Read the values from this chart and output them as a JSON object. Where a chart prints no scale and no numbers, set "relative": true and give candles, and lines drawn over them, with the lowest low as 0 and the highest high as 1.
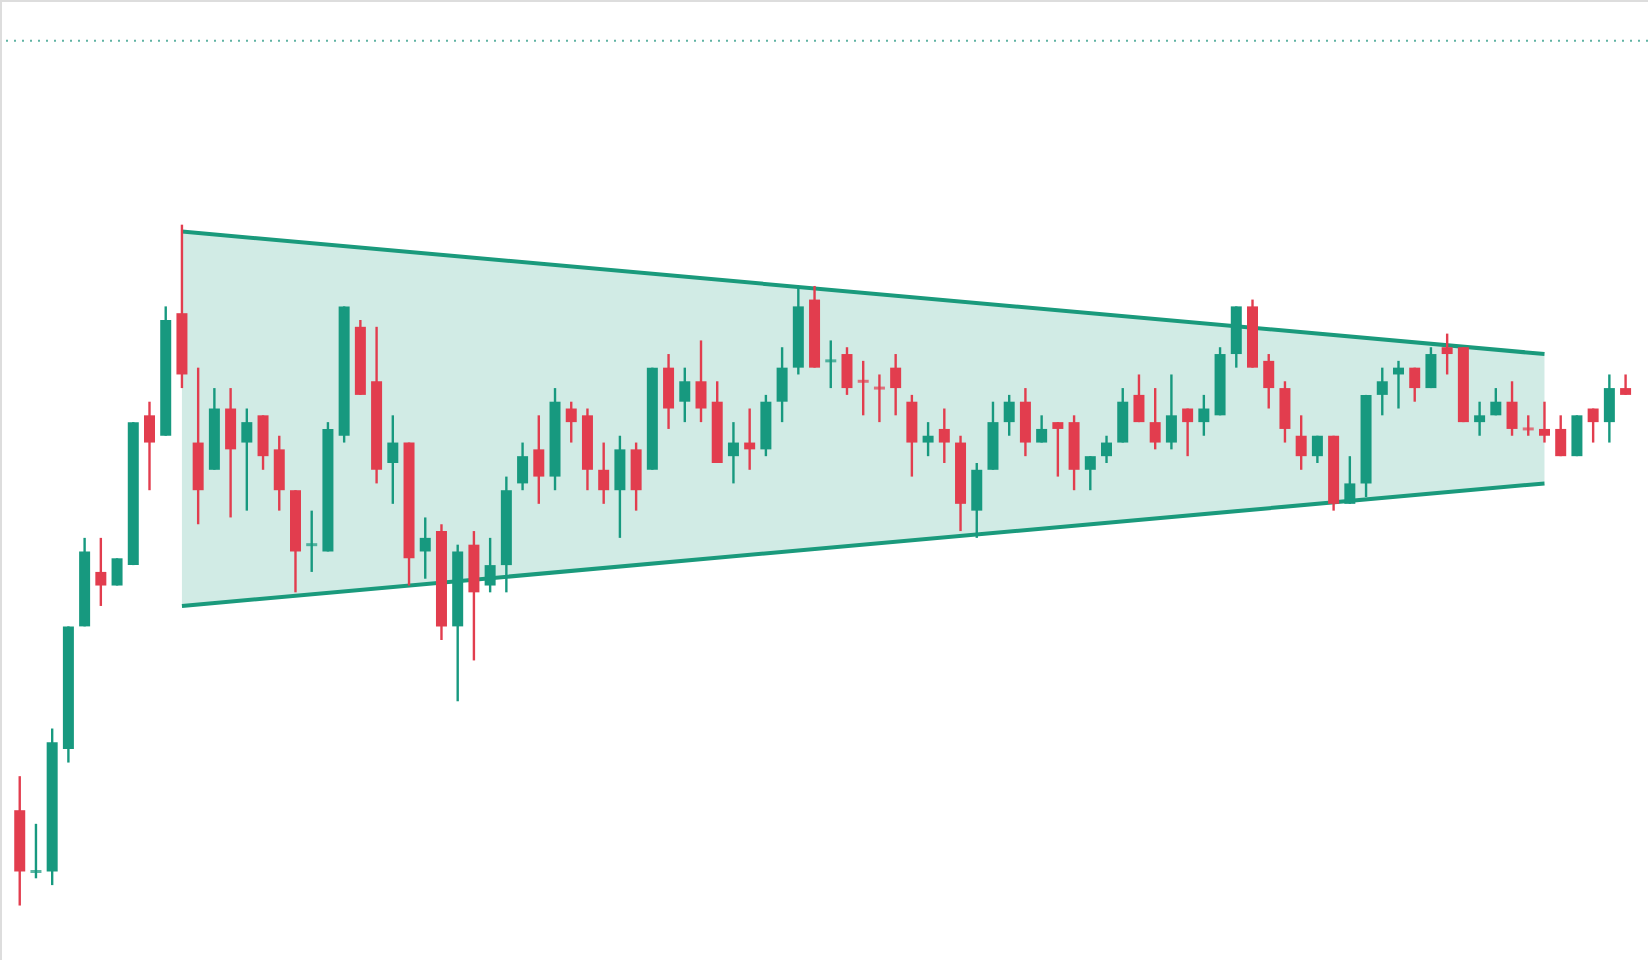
{
  "chart_data": {
    "type": "candlestick",
    "relative": true,
    "categories": [
      null,
      null,
      null,
      null,
      null,
      null,
      null,
      null,
      null,
      null,
      null,
      null,
      null,
      null,
      null,
      null,
      null,
      null,
      null,
      null,
      null,
      null,
      null,
      null,
      null,
      null,
      null,
      null,
      null,
      null,
      null,
      null,
      null,
      null,
      null,
      null,
      null,
      null,
      null,
      null,
      null,
      null,
      null,
      null,
      null,
      null,
      null,
      null,
      null,
      null,
      null,
      null,
      null,
      null,
      null,
      null,
      null,
      null,
      null,
      null,
      null,
      null,
      null,
      null,
      null,
      null,
      null,
      null,
      null,
      null,
      null,
      null,
      null,
      null,
      null,
      null,
      null,
      null,
      null,
      null,
      null,
      null,
      null,
      null,
      null,
      null,
      null,
      null,
      null,
      null,
      null,
      null,
      null,
      null,
      null,
      null,
      null,
      null,
      null,
      null
    ],
    "ohlc": [
      [
        0.14,
        0.19,
        0.0,
        0.05
      ],
      [
        0.05,
        0.12,
        0.04,
        0.05
      ],
      [
        0.05,
        0.26,
        0.03,
        0.24
      ],
      [
        0.23,
        0.41,
        0.21,
        0.41
      ],
      [
        0.41,
        0.54,
        0.41,
        0.52
      ],
      [
        0.49,
        0.54,
        0.44,
        0.47
      ],
      [
        0.47,
        0.51,
        0.47,
        0.51
      ],
      [
        0.5,
        0.71,
        0.5,
        0.71
      ],
      [
        0.72,
        0.74,
        0.61,
        0.68
      ],
      [
        0.69,
        0.88,
        0.69,
        0.86
      ],
      [
        0.87,
        1.0,
        0.76,
        0.78
      ],
      [
        0.68,
        0.79,
        0.56,
        0.61
      ],
      [
        0.64,
        0.76,
        0.64,
        0.73
      ],
      [
        0.73,
        0.76,
        0.57,
        0.67
      ],
      [
        0.68,
        0.73,
        0.58,
        0.71
      ],
      [
        0.72,
        0.72,
        0.64,
        0.66
      ],
      [
        0.67,
        0.69,
        0.58,
        0.61
      ],
      [
        0.61,
        0.61,
        0.46,
        0.52
      ],
      [
        0.53,
        0.58,
        0.49,
        0.53
      ],
      [
        0.52,
        0.71,
        0.52,
        0.7
      ],
      [
        0.69,
        0.88,
        0.68,
        0.88
      ],
      [
        0.85,
        0.86,
        0.75,
        0.75
      ],
      [
        0.77,
        0.85,
        0.62,
        0.64
      ],
      [
        0.65,
        0.72,
        0.59,
        0.68
      ],
      [
        0.68,
        0.68,
        0.47,
        0.51
      ],
      [
        0.52,
        0.57,
        0.48,
        0.54
      ],
      [
        0.55,
        0.56,
        0.39,
        0.41
      ],
      [
        0.41,
        0.53,
        0.3,
        0.52
      ],
      [
        0.53,
        0.55,
        0.36,
        0.46
      ],
      [
        0.47,
        0.54,
        0.46,
        0.5
      ],
      [
        0.5,
        0.63,
        0.46,
        0.61
      ],
      [
        0.62,
        0.68,
        0.61,
        0.66
      ],
      [
        0.67,
        0.72,
        0.59,
        0.63
      ],
      [
        0.63,
        0.76,
        0.61,
        0.74
      ],
      [
        0.73,
        0.74,
        0.68,
        0.71
      ],
      [
        0.72,
        0.73,
        0.61,
        0.64
      ],
      [
        0.64,
        0.68,
        0.59,
        0.61
      ],
      [
        0.61,
        0.69,
        0.54,
        0.67
      ],
      [
        0.67,
        0.68,
        0.58,
        0.61
      ],
      [
        0.64,
        0.79,
        0.64,
        0.79
      ],
      [
        0.79,
        0.81,
        0.7,
        0.73
      ],
      [
        0.74,
        0.79,
        0.71,
        0.77
      ],
      [
        0.77,
        0.83,
        0.71,
        0.73
      ],
      [
        0.74,
        0.77,
        0.65,
        0.65
      ],
      [
        0.66,
        0.71,
        0.62,
        0.68
      ],
      [
        0.68,
        0.73,
        0.64,
        0.67
      ],
      [
        0.67,
        0.75,
        0.66,
        0.74
      ],
      [
        0.74,
        0.82,
        0.71,
        0.79
      ],
      [
        0.79,
        0.91,
        0.78,
        0.88
      ],
      [
        0.89,
        0.91,
        0.79,
        0.79
      ],
      [
        0.8,
        0.83,
        0.76,
        0.8
      ],
      [
        0.81,
        0.82,
        0.75,
        0.76
      ],
      [
        0.77,
        0.8,
        0.72,
        0.77
      ],
      [
        0.76,
        0.78,
        0.71,
        0.76
      ],
      [
        0.79,
        0.81,
        0.72,
        0.76
      ],
      [
        0.74,
        0.75,
        0.63,
        0.68
      ],
      [
        0.68,
        0.71,
        0.66,
        0.69
      ],
      [
        0.7,
        0.73,
        0.65,
        0.68
      ],
      [
        0.68,
        0.69,
        0.55,
        0.59
      ],
      [
        0.58,
        0.65,
        0.54,
        0.64
      ],
      [
        0.64,
        0.74,
        0.64,
        0.71
      ],
      [
        0.71,
        0.75,
        0.69,
        0.74
      ],
      [
        0.74,
        0.76,
        0.66,
        0.68
      ],
      [
        0.68,
        0.72,
        0.68,
        0.7
      ],
      [
        0.71,
        0.71,
        0.63,
        0.7
      ],
      [
        0.71,
        0.72,
        0.61,
        0.64
      ],
      [
        0.64,
        0.66,
        0.61,
        0.66
      ],
      [
        0.66,
        0.69,
        0.65,
        0.68
      ],
      [
        0.68,
        0.76,
        0.68,
        0.74
      ],
      [
        0.75,
        0.78,
        0.71,
        0.71
      ],
      [
        0.71,
        0.76,
        0.67,
        0.68
      ],
      [
        0.68,
        0.78,
        0.67,
        0.72
      ],
      [
        0.73,
        0.73,
        0.66,
        0.71
      ],
      [
        0.71,
        0.75,
        0.69,
        0.73
      ],
      [
        0.72,
        0.82,
        0.72,
        0.81
      ],
      [
        0.81,
        0.88,
        0.79,
        0.88
      ],
      [
        0.88,
        0.89,
        0.79,
        0.79
      ],
      [
        0.8,
        0.81,
        0.73,
        0.76
      ],
      [
        0.76,
        0.77,
        0.68,
        0.7
      ],
      [
        0.69,
        0.72,
        0.64,
        0.66
      ],
      [
        0.66,
        0.69,
        0.65,
        0.69
      ],
      [
        0.69,
        0.69,
        0.58,
        0.59
      ],
      [
        0.59,
        0.66,
        0.59,
        0.62
      ],
      [
        0.62,
        0.75,
        0.6,
        0.75
      ],
      [
        0.75,
        0.79,
        0.72,
        0.77
      ],
      [
        0.78,
        0.8,
        0.73,
        0.79
      ],
      [
        0.79,
        0.79,
        0.74,
        0.76
      ],
      [
        0.76,
        0.82,
        0.76,
        0.81
      ],
      [
        0.82,
        0.84,
        0.78,
        0.81
      ],
      [
        0.82,
        0.82,
        0.71,
        0.71
      ],
      [
        0.71,
        0.74,
        0.69,
        0.72
      ],
      [
        0.72,
        0.76,
        0.72,
        0.74
      ],
      [
        0.74,
        0.77,
        0.69,
        0.7
      ],
      [
        0.7,
        0.72,
        0.69,
        0.7
      ],
      [
        0.7,
        0.74,
        0.68,
        0.69
      ],
      [
        0.7,
        0.72,
        0.66,
        0.66
      ],
      [
        0.66,
        0.72,
        0.66,
        0.72
      ],
      [
        0.73,
        0.73,
        0.68,
        0.71
      ],
      [
        0.71,
        0.78,
        0.68,
        0.76
      ],
      [
        0.76,
        0.78,
        0.75,
        0.75
      ]
    ],
    "colors": [
      "#e23d4e",
      "#17997f",
      "#17997f",
      "#17997f",
      "#17997f",
      "#e23d4e",
      "#17997f",
      "#17997f",
      "#e23d4e",
      "#17997f",
      "#e23d4e",
      "#e23d4e",
      "#17997f",
      "#e23d4e",
      "#17997f",
      "#e23d4e",
      "#e23d4e",
      "#e23d4e",
      "#17997f",
      "#17997f",
      "#17997f",
      "#e23d4e",
      "#e23d4e",
      "#17997f",
      "#e23d4e",
      "#17997f",
      "#e23d4e",
      "#17997f",
      "#e23d4e",
      "#17997f",
      "#17997f",
      "#17997f",
      "#e23d4e",
      "#17997f",
      "#e23d4e",
      "#e23d4e",
      "#e23d4e",
      "#17997f",
      "#e23d4e",
      "#17997f",
      "#e23d4e",
      "#17997f",
      "#e23d4e",
      "#e23d4e",
      "#17997f",
      "#e23d4e",
      "#17997f",
      "#17997f",
      "#17997f",
      "#e23d4e",
      "#17997f",
      "#e23d4e",
      "#e23d4e",
      "#e23d4e",
      "#e23d4e",
      "#e23d4e",
      "#17997f",
      "#e23d4e",
      "#e23d4e",
      "#17997f",
      "#17997f",
      "#17997f",
      "#e23d4e",
      "#17997f",
      "#e23d4e",
      "#e23d4e",
      "#17997f",
      "#17997f",
      "#17997f",
      "#e23d4e",
      "#e23d4e",
      "#17997f",
      "#e23d4e",
      "#17997f",
      "#17997f",
      "#17997f",
      "#e23d4e",
      "#e23d4e",
      "#e23d4e",
      "#e23d4e",
      "#17997f",
      "#e23d4e",
      "#17997f",
      "#17997f",
      "#17997f",
      "#17997f",
      "#e23d4e",
      "#17997f",
      "#e23d4e",
      "#e23d4e",
      "#17997f",
      "#17997f",
      "#e23d4e",
      "#e23d4e",
      "#e23d4e",
      "#e23d4e",
      "#17997f",
      "#e23d4e",
      "#17997f",
      "#e23d4e"
    ],
    "series": [
      {
        "type": "line",
        "color": "#1a9a7c",
        "values": [
          null,
          null,
          null,
          null,
          null,
          null,
          null,
          null,
          null,
          null,
          0.99,
          null,
          null,
          null,
          null,
          null,
          null,
          null,
          null,
          null,
          null,
          null,
          null,
          null,
          null,
          null,
          null,
          null,
          null,
          null,
          null,
          null,
          null,
          null,
          null,
          null,
          null,
          null,
          null,
          null,
          null,
          null,
          null,
          null,
          null,
          null,
          null,
          null,
          null,
          null,
          null,
          null,
          null,
          null,
          null,
          null,
          null,
          null,
          null,
          null,
          null,
          null,
          null,
          null,
          null,
          null,
          null,
          null,
          null,
          null,
          null,
          null,
          null,
          null,
          null,
          null,
          null,
          null,
          null,
          null,
          null,
          null,
          null,
          null,
          null,
          null,
          null,
          null,
          null,
          null,
          null,
          null,
          null,
          null,
          0.81,
          null,
          null,
          null,
          null,
          null
        ],
        "lower": [
          null,
          null,
          null,
          null,
          null,
          null,
          null,
          null,
          null,
          null,
          0.44,
          null,
          null,
          null,
          null,
          null,
          null,
          null,
          null,
          null,
          null,
          null,
          null,
          null,
          null,
          null,
          null,
          null,
          null,
          null,
          null,
          null,
          null,
          null,
          null,
          null,
          null,
          null,
          null,
          null,
          null,
          null,
          null,
          null,
          null,
          null,
          null,
          null,
          null,
          null,
          null,
          null,
          null,
          null,
          null,
          null,
          null,
          null,
          null,
          null,
          null,
          null,
          null,
          null,
          null,
          null,
          null,
          null,
          null,
          null,
          null,
          null,
          null,
          null,
          null,
          null,
          null,
          null,
          null,
          null,
          null,
          null,
          null,
          null,
          null,
          null,
          null,
          null,
          null,
          null,
          null,
          null,
          null,
          null,
          0.62,
          null,
          null,
          null,
          null,
          null
        ],
        "upper": [
          null,
          null,
          null,
          null,
          null,
          null,
          null,
          null,
          null,
          null,
          0.99,
          null,
          null,
          null,
          null,
          null,
          null,
          null,
          null,
          null,
          null,
          null,
          null,
          null,
          null,
          null,
          null,
          null,
          null,
          null,
          null,
          null,
          null,
          null,
          null,
          null,
          null,
          null,
          null,
          null,
          null,
          null,
          null,
          null,
          null,
          null,
          null,
          null,
          null,
          null,
          null,
          null,
          null,
          null,
          null,
          null,
          null,
          null,
          null,
          null,
          null,
          null,
          null,
          null,
          null,
          null,
          null,
          null,
          null,
          null,
          null,
          null,
          null,
          null,
          null,
          null,
          null,
          null,
          null,
          null,
          null,
          null,
          null,
          null,
          null,
          null,
          null,
          null,
          null,
          null,
          null,
          null,
          null,
          null,
          0.81,
          null,
          null,
          null,
          null,
          null
        ]
      },
      {
        "type": "line",
        "color": "#1a9a7c",
        "values": [
          null,
          null,
          null,
          null,
          null,
          null,
          null,
          null,
          null,
          null,
          0.44,
          null,
          null,
          null,
          null,
          null,
          null,
          null,
          null,
          null,
          null,
          null,
          null,
          null,
          null,
          null,
          null,
          null,
          null,
          null,
          null,
          null,
          null,
          null,
          null,
          null,
          null,
          null,
          null,
          null,
          null,
          null,
          null,
          null,
          null,
          null,
          null,
          null,
          null,
          null,
          null,
          null,
          null,
          null,
          null,
          null,
          null,
          null,
          null,
          null,
          null,
          null,
          null,
          null,
          null,
          null,
          null,
          null,
          null,
          null,
          null,
          null,
          null,
          null,
          null,
          null,
          null,
          null,
          null,
          null,
          null,
          null,
          null,
          null,
          null,
          null,
          null,
          null,
          null,
          null,
          null,
          null,
          null,
          null,
          0.62,
          null,
          null,
          null,
          null,
          null
        ]
      }
    ],
    "ref_lines": [
      {
        "axis": "y",
        "value": 1.27,
        "color": "#5fb3a3",
        "line_style": "dotted"
      }
    ],
    "marker": "none"
  }
}
